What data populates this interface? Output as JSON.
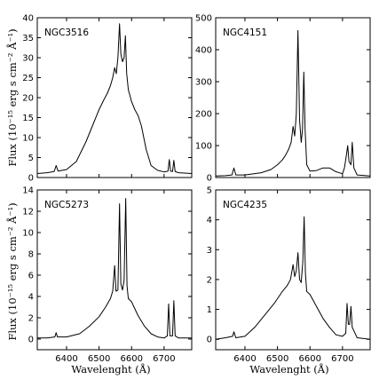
{
  "figure": {
    "xlabel": "Wavelenght (Å)",
    "ylabel": "Flux (10⁻¹⁵ erg s cm⁻² Å⁻¹)"
  },
  "chart_data": [
    {
      "type": "line",
      "panel": "top-left",
      "label": "NGC3516",
      "xlim": [
        6310,
        6785
      ],
      "ylim": [
        0,
        40
      ],
      "yticks": [
        0,
        5,
        10,
        15,
        20,
        25,
        30,
        35,
        40
      ],
      "xticks": [
        6400,
        6500,
        6600,
        6700
      ],
      "x": [
        6310,
        6340,
        6362,
        6368,
        6374,
        6400,
        6430,
        6460,
        6480,
        6500,
        6515,
        6525,
        6535,
        6542,
        6548,
        6553,
        6558,
        6563,
        6567,
        6572,
        6577,
        6581,
        6585,
        6590,
        6600,
        6610,
        6620,
        6630,
        6645,
        6660,
        6680,
        6700,
        6712,
        6716,
        6720,
        6726,
        6730,
        6734,
        6745,
        6785
      ],
      "y": [
        1,
        1.2,
        1.5,
        3,
        1.6,
        2,
        4,
        9,
        13,
        17,
        19.5,
        21,
        23,
        25,
        27.5,
        26,
        30,
        38.5,
        31,
        29,
        30,
        35.5,
        26,
        22,
        19,
        17,
        15.5,
        13,
        7,
        3,
        1.8,
        1.4,
        1.6,
        4.5,
        1.6,
        1.5,
        4.3,
        1.5,
        1.2,
        1
      ]
    },
    {
      "type": "line",
      "panel": "top-right",
      "label": "NGC4151",
      "xlim": [
        6310,
        6785
      ],
      "ylim": [
        0,
        500
      ],
      "yticks": [
        0,
        100,
        200,
        300,
        400,
        500
      ],
      "xticks": [
        6400,
        6500,
        6600,
        6700
      ],
      "x": [
        6310,
        6340,
        6360,
        6366,
        6372,
        6400,
        6450,
        6480,
        6500,
        6515,
        6525,
        6535,
        6542,
        6548,
        6553,
        6558,
        6563,
        6568,
        6573,
        6577,
        6581,
        6585,
        6590,
        6600,
        6620,
        6640,
        6660,
        6680,
        6700,
        6706,
        6712,
        6716,
        6720,
        6726,
        6730,
        6735,
        6745,
        6785
      ],
      "y": [
        5,
        6,
        8,
        30,
        8,
        8,
        15,
        25,
        40,
        55,
        70,
        90,
        110,
        160,
        130,
        200,
        460,
        180,
        110,
        150,
        330,
        150,
        40,
        20,
        22,
        30,
        30,
        18,
        12,
        30,
        70,
        100,
        50,
        40,
        110,
        30,
        8,
        5
      ]
    },
    {
      "type": "line",
      "panel": "bottom-left",
      "label": "NGC5273",
      "xlim": [
        6310,
        6785
      ],
      "ylim": [
        -1,
        14
      ],
      "yticks": [
        0,
        2,
        4,
        6,
        8,
        10,
        12,
        14
      ],
      "xticks": [
        6400,
        6500,
        6600,
        6700
      ],
      "x": [
        6310,
        6340,
        6364,
        6368,
        6372,
        6400,
        6440,
        6470,
        6500,
        6520,
        6535,
        6542,
        6548,
        6552,
        6558,
        6563,
        6567,
        6572,
        6577,
        6582,
        6586,
        6590,
        6600,
        6620,
        6640,
        6660,
        6680,
        6700,
        6710,
        6714,
        6718,
        6722,
        6726,
        6730,
        6734,
        6745,
        6785
      ],
      "y": [
        0.1,
        0.1,
        0.2,
        0.6,
        0.2,
        0.2,
        0.5,
        1.2,
        2.1,
        3,
        3.8,
        4.5,
        6.9,
        4.5,
        4.6,
        12.7,
        5.2,
        4.6,
        5.5,
        13.2,
        5,
        3.8,
        3.5,
        2.2,
        1.2,
        0.5,
        0.2,
        0.1,
        0.3,
        3.3,
        0.3,
        0.3,
        0.3,
        3.6,
        0.3,
        0.1,
        0.1
      ]
    },
    {
      "type": "line",
      "panel": "bottom-right",
      "label": "NGC4235",
      "xlim": [
        6310,
        6785
      ],
      "ylim": [
        -0.35,
        5
      ],
      "yticks": [
        0,
        1,
        2,
        3,
        4,
        5
      ],
      "xticks": [
        6400,
        6500,
        6600,
        6700
      ],
      "x": [
        6310,
        6340,
        6362,
        6366,
        6372,
        6400,
        6430,
        6460,
        6490,
        6515,
        6530,
        6540,
        6548,
        6553,
        6558,
        6563,
        6568,
        6573,
        6578,
        6582,
        6586,
        6590,
        6600,
        6620,
        6640,
        6660,
        6680,
        6700,
        6710,
        6714,
        6718,
        6722,
        6726,
        6730,
        6745,
        6785
      ],
      "y": [
        0,
        0.05,
        0.1,
        0.25,
        0.05,
        0.1,
        0.4,
        0.8,
        1.2,
        1.6,
        1.8,
        2.0,
        2.5,
        2.1,
        2.3,
        2.9,
        2.0,
        1.9,
        2.6,
        4.1,
        2.2,
        1.6,
        1.5,
        1.1,
        0.7,
        0.4,
        0.15,
        0.1,
        0.2,
        1.2,
        0.5,
        0.5,
        1.1,
        0.4,
        0.05,
        0
      ]
    }
  ]
}
